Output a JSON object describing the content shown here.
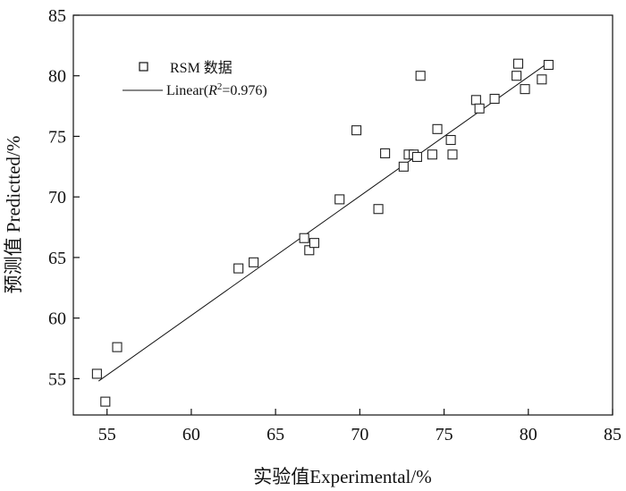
{
  "chart_data": {
    "type": "scatter",
    "title": "",
    "xlabel": "实验值Experimental/%",
    "ylabel": "预测值 Predictted/%",
    "xlim": [
      53,
      85
    ],
    "ylim": [
      52,
      85
    ],
    "x_ticks": [
      "55",
      "60",
      "65",
      "70",
      "75",
      "80",
      "85"
    ],
    "y_ticks": [
      "55",
      "60",
      "65",
      "70",
      "75",
      "80",
      "85"
    ],
    "grid": false,
    "legend_position": "top-left",
    "series": [
      {
        "name": "RSM 数据",
        "marker": "square-open",
        "x": [
          54.4,
          54.9,
          55.6,
          62.8,
          63.7,
          66.7,
          67.0,
          67.3,
          68.8,
          69.8,
          71.1,
          71.5,
          72.6,
          72.9,
          73.2,
          73.4,
          73.6,
          74.3,
          74.6,
          75.4,
          75.5,
          76.9,
          77.1,
          78.0,
          79.3,
          79.4,
          79.8,
          80.8,
          81.2
        ],
        "y": [
          55.4,
          53.1,
          57.6,
          64.1,
          64.6,
          66.6,
          65.6,
          66.2,
          69.8,
          75.5,
          69.0,
          73.6,
          72.5,
          73.5,
          73.5,
          73.3,
          80.0,
          73.5,
          75.6,
          74.7,
          73.5,
          78.0,
          77.3,
          78.1,
          80.0,
          81.0,
          78.9,
          79.7,
          80.9
        ]
      }
    ],
    "fit": {
      "name": "Linear",
      "legend_prefix": "Linear(",
      "legend_r": "R",
      "legend_sup": "2",
      "legend_suffix": "=0.976)",
      "x": [
        54.5,
        81.0
      ],
      "y": [
        54.8,
        80.9
      ]
    }
  }
}
